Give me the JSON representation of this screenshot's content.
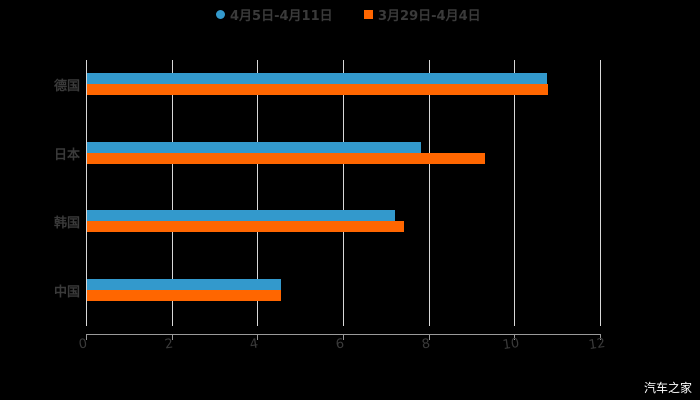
{
  "chart_data": {
    "type": "bar",
    "orientation": "horizontal",
    "title": "",
    "xlabel": "",
    "ylabel": "",
    "categories": [
      "德国",
      "日本",
      "韩国",
      "中国"
    ],
    "series": [
      {
        "name": "4月5日-4月11日",
        "color": "#3399cc",
        "values": [
          10.74,
          7.8,
          7.19,
          4.53
        ]
      },
      {
        "name": "3月29日-4月4日",
        "color": "#ff6600",
        "values": [
          10.76,
          9.29,
          7.4,
          4.53
        ]
      }
    ],
    "xlim": [
      0,
      12
    ],
    "xticks": [
      "0",
      "2",
      "4",
      "6",
      "8",
      "10",
      "12"
    ],
    "grid": true,
    "legend_position": "top"
  },
  "legend": {
    "items": [
      {
        "label": "4月5日-4月11日",
        "color": "#3399cc",
        "marker": "circle"
      },
      {
        "label": "3月29日-4月4日",
        "color": "#ff6600",
        "marker": "square"
      }
    ]
  },
  "watermark": "汽车之家"
}
